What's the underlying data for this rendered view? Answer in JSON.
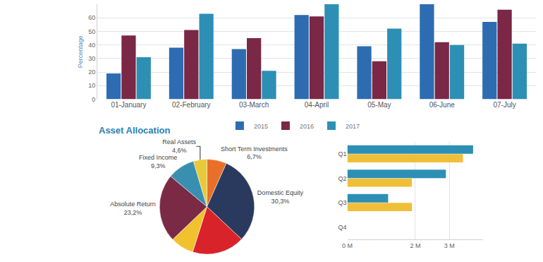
{
  "chart_data": [
    {
      "type": "bar",
      "categories": [
        "01-January",
        "02-February",
        "03-March",
        "04-April",
        "05-May",
        "06-June",
        "07-July"
      ],
      "series": [
        {
          "name": "2015",
          "color": "#2d6cb0",
          "values": [
            19,
            38,
            37,
            62,
            39,
            70,
            57
          ]
        },
        {
          "name": "2016",
          "color": "#7b2746",
          "values": [
            47,
            51,
            45,
            61,
            28,
            42,
            66
          ]
        },
        {
          "name": "2017",
          "color": "#2e8fb5",
          "values": [
            31,
            63,
            21,
            70,
            52,
            40,
            41
          ]
        }
      ],
      "y_label": "Percentage",
      "ylim": [
        0,
        70
      ],
      "yticks": [
        0,
        10,
        20,
        30,
        40,
        50,
        60
      ],
      "grid": true,
      "legend": "bottom"
    },
    {
      "type": "pie",
      "title": "Asset Allocation",
      "categories": [
        "Short Term Investments",
        "Domestic Equity",
        null,
        null,
        "Absolute Return",
        "Fixed Income",
        "Real Assets"
      ],
      "values": [
        6.7,
        30.3,
        17.9,
        8.0,
        23.2,
        9.3,
        4.6
      ],
      "value_labels": [
        "6,7%",
        "30,3%",
        null,
        null,
        "23,2%",
        "9,3%",
        "4,6%"
      ],
      "colors": [
        "#e8702a",
        "#2a3a5e",
        "#d9232a",
        "#f2c12e",
        "#7a2a45",
        "#3a8fb0",
        "#e8c93a"
      ],
      "data_labels": true
    },
    {
      "type": "bar",
      "orientation": "horizontal",
      "categories": [
        "Q1",
        "Q2",
        "Q3",
        "Q4"
      ],
      "series": [
        {
          "color": "#2e8fb5",
          "values": [
            3.7,
            2.9,
            1.2,
            null
          ]
        },
        {
          "color": "#f0bf3a",
          "values": [
            3.4,
            1.9,
            1.9,
            null
          ]
        }
      ],
      "xlim": [
        0,
        4
      ],
      "xticks": [
        {
          "value": 0,
          "label": "0 M"
        },
        {
          "value": 2,
          "label": "2 M"
        },
        {
          "value": 3,
          "label": "3 M"
        }
      ],
      "grid": true
    }
  ]
}
